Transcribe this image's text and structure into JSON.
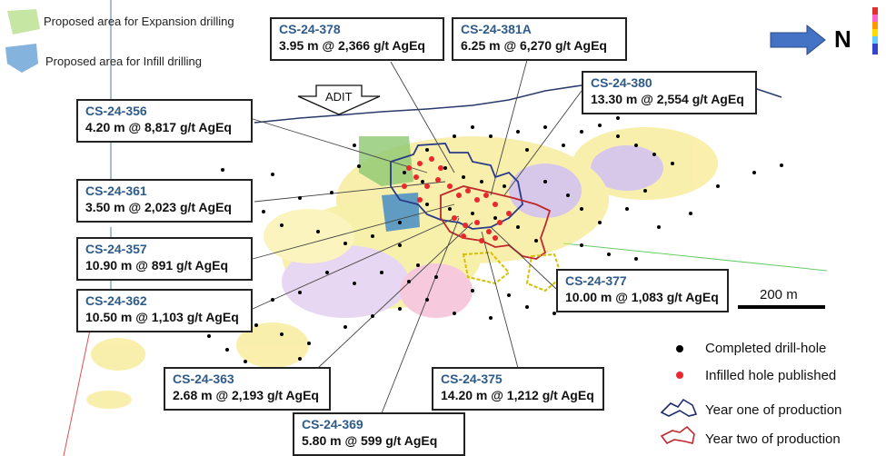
{
  "legend_areas": {
    "expansion": "Proposed area for Expansion drilling",
    "infill": "Proposed area for Infill drilling"
  },
  "north_label": "N",
  "adit_label": "ADIT",
  "scale_label": "200 m",
  "callouts": [
    {
      "id": "c356",
      "hole": "CS-24-356",
      "assay": "4.20 m @ 8,817 g/t AgEq"
    },
    {
      "id": "c378",
      "hole": "CS-24-378",
      "assay": "3.95 m @ 2,366 g/t AgEq"
    },
    {
      "id": "c381a",
      "hole": "CS-24-381A",
      "assay": "6.25 m @ 6,270 g/t AgEq"
    },
    {
      "id": "c380",
      "hole": "CS-24-380",
      "assay": "13.30 m @ 2,554 g/t AgEq"
    },
    {
      "id": "c361",
      "hole": "CS-24-361",
      "assay": "3.50 m @ 2,023 g/t AgEq"
    },
    {
      "id": "c357",
      "hole": "CS-24-357",
      "assay": "10.90 m @ 891 g/t AgEq"
    },
    {
      "id": "c362",
      "hole": "CS-24-362",
      "assay": "10.50 m @ 1,103 g/t AgEq"
    },
    {
      "id": "c377",
      "hole": "CS-24-377",
      "assay": "10.00 m @ 1,083 g/t AgEq"
    },
    {
      "id": "c363",
      "hole": "CS-24-363",
      "assay": "2.68 m @ 2,193 g/t AgEq"
    },
    {
      "id": "c375",
      "hole": "CS-24-375",
      "assay": "14.20 m @ 1,212 g/t AgEq"
    },
    {
      "id": "c369",
      "hole": "CS-24-369",
      "assay": "5.80 m @ 599 g/t AgEq"
    }
  ],
  "legend": {
    "completed": "Completed drill-hole",
    "infilled": "Infilled hole published",
    "year_one": "Year one of production",
    "year_two": "Year two of production"
  },
  "colors": {
    "year_one": "#1f2a6b",
    "year_two": "#c0282c",
    "infilled": "#e8282c",
    "completed": "#000000",
    "north_arrow": "#4472c4",
    "hole_id_text": "#2e5b8a"
  }
}
